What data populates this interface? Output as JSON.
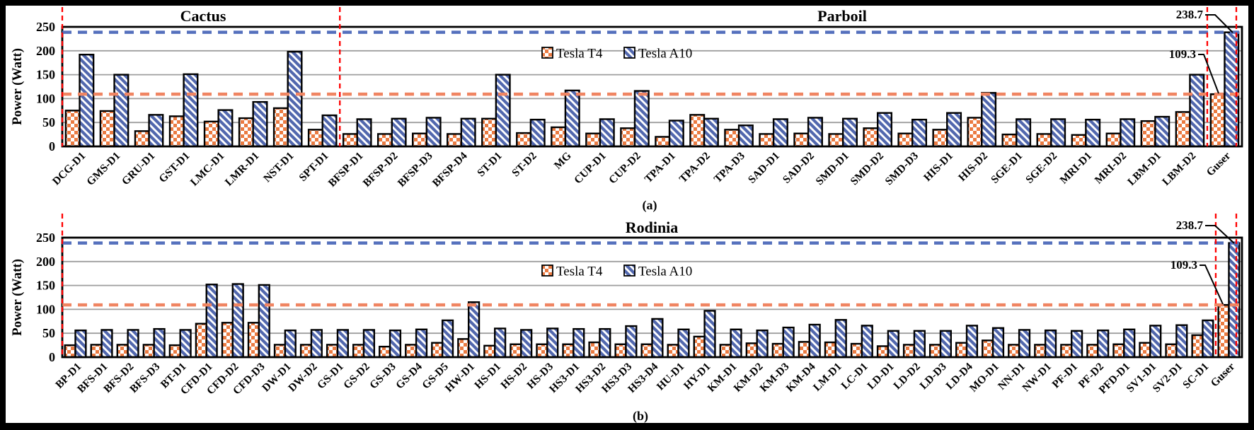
{
  "figure": {
    "background": "#000000",
    "panel_background": "#ffffff"
  },
  "legend": {
    "entries": [
      {
        "series": "t4",
        "label": "Tesla T4"
      },
      {
        "series": "a10",
        "label": "Tesla A10"
      }
    ]
  },
  "colors": {
    "t4_pattern": "#EB7B42",
    "a10_pattern": "#5268AE",
    "t4_max_line": "#F08562",
    "a10_max_line": "#5570BD",
    "section_divider": "#FF0000",
    "gridline": "#9E9E9E",
    "bar_outline": "#000000",
    "text": "#000000"
  },
  "chart_data": [
    {
      "type": "bar",
      "panel": "a",
      "caption": "(a)",
      "ylabel": "Power (Watt)",
      "ylim": [
        0,
        250
      ],
      "yticks": [
        0,
        50,
        100,
        150,
        200,
        250
      ],
      "grid": true,
      "legend_position": "inside-top-center",
      "sections": [
        {
          "label": "Cactus",
          "from": 0,
          "to": 7
        },
        {
          "label": "Parboil",
          "from": 8,
          "to": 33
        }
      ],
      "vline_boundaries": [
        0,
        8,
        33,
        34
      ],
      "categories": [
        "DCG-D1",
        "GMS-D1",
        "GRU-D1",
        "GST-D1",
        "LMC-D1",
        "LMR-D1",
        "NST-D1",
        "SPT-D1",
        "BFSP-D1",
        "BFSP-D2",
        "BFSP-D3",
        "BFSP-D4",
        "ST-D1",
        "ST-D2",
        "MG",
        "CUP-D1",
        "CUP-D2",
        "TPA-D1",
        "TPA-D2",
        "TPA-D3",
        "SAD-D1",
        "SAD-D2",
        "SMD-D1",
        "SMD-D2",
        "SMD-D3",
        "HIS-D1",
        "HIS-D2",
        "SGE-D1",
        "SGE-D2",
        "MRI-D1",
        "MRI-D2",
        "LBM-D1",
        "LBM-D2",
        "Guser"
      ],
      "series": [
        {
          "name": "Tesla T4",
          "values": [
            75,
            74,
            32,
            63,
            52,
            59,
            80,
            35,
            26,
            26,
            27,
            26,
            58,
            28,
            40,
            27,
            38,
            20,
            66,
            35,
            26,
            27,
            26,
            38,
            27,
            35,
            60,
            25,
            26,
            24,
            27,
            53,
            72,
            109.3
          ]
        },
        {
          "name": "Tesla A10",
          "values": [
            192,
            150,
            66,
            151,
            76,
            93,
            198,
            65,
            57,
            58,
            60,
            58,
            150,
            56,
            117,
            57,
            116,
            54,
            58,
            44,
            57,
            60,
            58,
            70,
            56,
            70,
            112,
            57,
            57,
            56,
            57,
            62,
            150,
            238.7
          ]
        }
      ],
      "hlines": [
        {
          "value": 238.7,
          "label": "238.7",
          "series": "a10"
        },
        {
          "value": 109.3,
          "label": "109.3",
          "series": "t4"
        }
      ]
    },
    {
      "type": "bar",
      "panel": "b",
      "caption": "(b)",
      "ylabel": "Power (Watt)",
      "ylim": [
        0,
        250
      ],
      "yticks": [
        0,
        50,
        100,
        150,
        200,
        250
      ],
      "grid": true,
      "legend_position": "inside-top-center",
      "sections": [
        {
          "label": "Rodinia",
          "from": 0,
          "to": 44
        }
      ],
      "vline_boundaries": [
        0,
        44,
        45
      ],
      "categories": [
        "BP-D1",
        "BFS-D1",
        "BFS-D2",
        "BFS-D3",
        "BT-D1",
        "CFD-D1",
        "CFD-D2",
        "CFD-D3",
        "DW-D1",
        "DW-D2",
        "GS-D1",
        "GS-D2",
        "GS-D3",
        "GS-D4",
        "GS-D5",
        "HW-D1",
        "HS-D1",
        "HS-D2",
        "HS-D3",
        "HS3-D1",
        "HS3-D2",
        "HS3-D3",
        "HS3-D4",
        "HU-D1",
        "HY-D1",
        "KM-D1",
        "KM-D2",
        "KM-D3",
        "KM-D4",
        "LM-D1",
        "LC-D1",
        "LD-D1",
        "LD-D2",
        "LD-D3",
        "LD-D4",
        "MO-D1",
        "NN-D1",
        "NW-D1",
        "PF-D1",
        "PF-D2",
        "PFD-D1",
        "SV1-D1",
        "SV2-D1",
        "SC-D1",
        "Guser"
      ],
      "series": [
        {
          "name": "Tesla T4",
          "values": [
            25,
            26,
            26,
            26,
            25,
            70,
            72,
            72,
            26,
            26,
            26,
            26,
            22,
            26,
            30,
            38,
            24,
            27,
            27,
            27,
            31,
            27,
            27,
            26,
            43,
            26,
            29,
            28,
            32,
            31,
            28,
            23,
            26,
            26,
            30,
            35,
            26,
            26,
            26,
            26,
            27,
            30,
            27,
            46,
            109.3
          ]
        },
        {
          "name": "Tesla A10",
          "values": [
            56,
            57,
            57,
            59,
            57,
            152,
            153,
            151,
            56,
            57,
            57,
            57,
            56,
            58,
            77,
            115,
            60,
            57,
            60,
            59,
            59,
            65,
            80,
            58,
            97,
            58,
            56,
            62,
            68,
            78,
            66,
            55,
            55,
            55,
            66,
            61,
            57,
            56,
            55,
            56,
            58,
            66,
            67,
            77,
            238.7
          ]
        }
      ],
      "hlines": [
        {
          "value": 238.7,
          "label": "238.7",
          "series": "a10"
        },
        {
          "value": 109.3,
          "label": "109.3",
          "series": "t4"
        }
      ]
    }
  ]
}
